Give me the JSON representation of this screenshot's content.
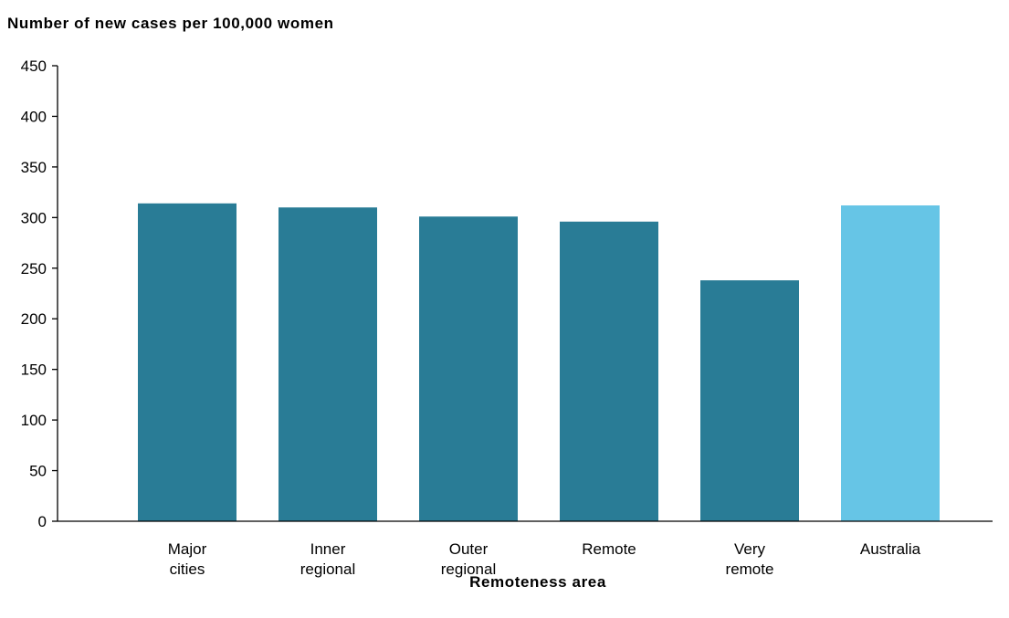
{
  "chart_data": {
    "type": "bar",
    "ylabel": "Number of new cases per 100,000 women",
    "xlabel": "Remoteness area",
    "ylim": [
      0,
      450
    ],
    "yticks": [
      "0",
      "50",
      "100",
      "150",
      "200",
      "250",
      "300",
      "350",
      "400",
      "450"
    ],
    "categories": [
      [
        "Major",
        "cities"
      ],
      [
        "Inner",
        "regional"
      ],
      [
        "Outer",
        "regional"
      ],
      [
        "Remote"
      ],
      [
        "Very",
        "remote"
      ],
      [
        "Australia"
      ]
    ],
    "values": [
      314,
      310,
      301,
      296,
      238,
      312
    ],
    "colors": [
      "#297c96",
      "#297c96",
      "#297c96",
      "#297c96",
      "#297c96",
      "#66c5e6"
    ],
    "grid": false,
    "legend": "none"
  }
}
